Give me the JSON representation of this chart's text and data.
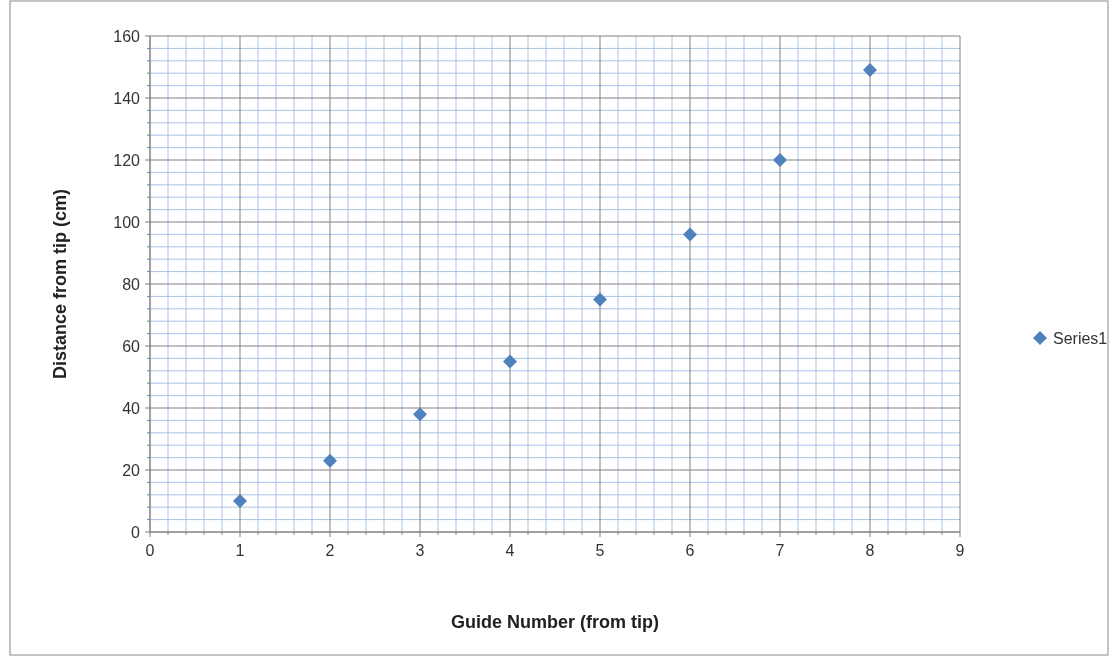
{
  "chart_data": {
    "type": "scatter",
    "xlabel": "Guide Number (from tip)",
    "ylabel": "Distance from tip (cm)",
    "x": [
      1,
      2,
      3,
      4,
      5,
      6,
      7,
      8
    ],
    "series": [
      {
        "name": "Series1",
        "color": "#4f81bd",
        "values": [
          10,
          23,
          38,
          55,
          75,
          96,
          120,
          149
        ]
      }
    ],
    "xlim": [
      0,
      9
    ],
    "xticks": [
      0,
      {
        "value": 0.2,
        "label": null
      },
      {
        "value": 0.4,
        "label": null
      },
      {
        "value": 0.6,
        "label": null
      },
      {
        "value": 0.8,
        "label": null
      },
      1,
      {
        "value": 1.2,
        "label": null
      },
      {
        "value": 1.4,
        "label": null
      },
      {
        "value": 1.6,
        "label": null
      },
      {
        "value": 1.8,
        "label": null
      },
      2,
      {
        "value": 2.2,
        "label": null
      },
      {
        "value": 2.4,
        "label": null
      },
      {
        "value": 2.6,
        "label": null
      },
      {
        "value": 2.8,
        "label": null
      },
      3,
      {
        "value": 3.2,
        "label": null
      },
      {
        "value": 3.4,
        "label": null
      },
      {
        "value": 3.6,
        "label": null
      },
      {
        "value": 3.8,
        "label": null
      },
      4,
      {
        "value": 4.2,
        "label": null
      },
      {
        "value": 4.4,
        "label": null
      },
      {
        "value": 4.6,
        "label": null
      },
      {
        "value": 4.8,
        "label": null
      },
      5,
      {
        "value": 5.2,
        "label": null
      },
      {
        "value": 5.4,
        "label": null
      },
      {
        "value": 5.6,
        "label": null
      },
      {
        "value": 5.8,
        "label": null
      },
      6,
      {
        "value": 6.2,
        "label": null
      },
      {
        "value": 6.4,
        "label": null
      },
      {
        "value": 6.6,
        "label": null
      },
      {
        "value": 6.8,
        "label": null
      },
      7,
      {
        "value": 7.2,
        "label": null
      },
      {
        "value": 7.4,
        "label": null
      },
      {
        "value": 7.6,
        "label": null
      },
      {
        "value": 7.8,
        "label": null
      },
      8,
      {
        "value": 8.2,
        "label": null
      },
      {
        "value": 8.4,
        "label": null
      },
      {
        "value": 8.6,
        "label": null
      },
      {
        "value": 8.8,
        "label": null
      },
      9
    ],
    "ylim": [
      0,
      160
    ],
    "yticks": [
      0,
      {
        "value": 4,
        "label": null
      },
      {
        "value": 8,
        "label": null
      },
      {
        "value": 12,
        "label": null
      },
      {
        "value": 16,
        "label": null
      },
      20,
      {
        "value": 24,
        "label": null
      },
      {
        "value": 28,
        "label": null
      },
      {
        "value": 32,
        "label": null
      },
      {
        "value": 36,
        "label": null
      },
      40,
      {
        "value": 44,
        "label": null
      },
      {
        "value": 48,
        "label": null
      },
      {
        "value": 52,
        "label": null
      },
      {
        "value": 56,
        "label": null
      },
      60,
      {
        "value": 64,
        "label": null
      },
      {
        "value": 68,
        "label": null
      },
      {
        "value": 72,
        "label": null
      },
      {
        "value": 76,
        "label": null
      },
      80,
      {
        "value": 84,
        "label": null
      },
      {
        "value": 88,
        "label": null
      },
      {
        "value": 92,
        "label": null
      },
      {
        "value": 96,
        "label": null
      },
      100,
      {
        "value": 104,
        "label": null
      },
      {
        "value": 108,
        "label": null
      },
      {
        "value": 112,
        "label": null
      },
      {
        "value": 116,
        "label": null
      },
      120,
      {
        "value": 124,
        "label": null
      },
      {
        "value": 128,
        "label": null
      },
      {
        "value": 132,
        "label": null
      },
      {
        "value": 136,
        "label": null
      },
      140,
      {
        "value": 144,
        "label": null
      },
      {
        "value": 148,
        "label": null
      },
      {
        "value": 152,
        "label": null
      },
      {
        "value": 156,
        "label": null
      },
      160
    ],
    "grid": true,
    "legend": "right",
    "marker": "diamond"
  }
}
